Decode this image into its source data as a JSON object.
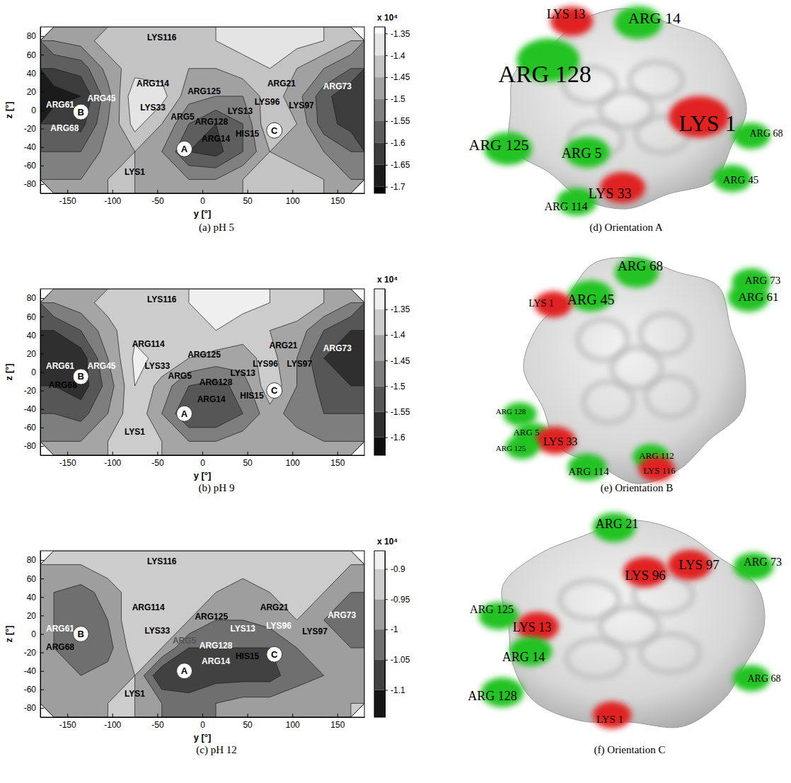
{
  "chart_data": [
    {
      "type": "contour",
      "title": "(a) pH 5",
      "x_label": "y [°]",
      "y_label": "z [°]",
      "xlim": [
        -180,
        180
      ],
      "xticks": [
        -150,
        -100,
        -50,
        0,
        50,
        100,
        150
      ],
      "ylim": [
        -90,
        90
      ],
      "yticks": [
        -80,
        -60,
        -40,
        -20,
        0,
        20,
        40,
        60,
        80
      ],
      "x": [
        -165,
        -135,
        -105,
        -75,
        -45,
        -15,
        15,
        45,
        75,
        105,
        135,
        165
      ],
      "y": [
        75,
        45,
        15,
        -15,
        -45,
        -75
      ],
      "cells": [
        [
          -1.5,
          -1.48,
          -1.42,
          -1.42,
          -1.42,
          -1.42,
          -1.4,
          -1.38,
          -1.38,
          -1.38,
          -1.4,
          -1.45
        ],
        [
          -1.6,
          -1.58,
          -1.48,
          -1.42,
          -1.42,
          -1.45,
          -1.45,
          -1.42,
          -1.4,
          -1.45,
          -1.5,
          -1.55
        ],
        [
          -1.68,
          -1.65,
          -1.52,
          -1.36,
          -1.38,
          -1.48,
          -1.5,
          -1.5,
          -1.42,
          -1.48,
          -1.58,
          -1.65
        ],
        [
          -1.6,
          -1.62,
          -1.5,
          -1.38,
          -1.45,
          -1.55,
          -1.6,
          -1.55,
          -1.4,
          -1.45,
          -1.58,
          -1.62
        ],
        [
          -1.55,
          -1.55,
          -1.48,
          -1.45,
          -1.5,
          -1.6,
          -1.62,
          -1.55,
          -1.45,
          -1.48,
          -1.5,
          -1.55
        ],
        [
          -1.5,
          -1.5,
          -1.45,
          -1.45,
          -1.48,
          -1.5,
          -1.5,
          -1.45,
          -1.45,
          -1.42,
          -1.45,
          -1.5
        ]
      ],
      "colorbar": {
        "range": [
          -1.715,
          -1.335
        ],
        "ticks": [
          -1.7,
          -1.65,
          -1.6,
          -1.55,
          -1.5,
          -1.45,
          -1.4,
          -1.35
        ],
        "label": "x 10⁴"
      },
      "annotations": [
        {
          "text": "LYS116",
          "x": -45,
          "y": 78,
          "color": "#000000"
        },
        {
          "text": "ARG114",
          "x": -55,
          "y": 28,
          "color": "#000000"
        },
        {
          "text": "ARG61",
          "x": -158,
          "y": 5,
          "color": "#ffffff"
        },
        {
          "text": "ARG45",
          "x": -112,
          "y": 12,
          "color": "#ffffff"
        },
        {
          "text": "ARG68",
          "x": -153,
          "y": -20,
          "color": "#ffffff"
        },
        {
          "text": "LYS33",
          "x": -55,
          "y": 2,
          "color": "#000000"
        },
        {
          "text": "ARG125",
          "x": 2,
          "y": 20,
          "color": "#000000"
        },
        {
          "text": "ARG5",
          "x": -22,
          "y": -8,
          "color": "#000000"
        },
        {
          "text": "ARG128",
          "x": 10,
          "y": -13,
          "color": "#000000"
        },
        {
          "text": "LYS13",
          "x": 42,
          "y": -2,
          "color": "#000000"
        },
        {
          "text": "ARG14",
          "x": 15,
          "y": -32,
          "color": "#000000"
        },
        {
          "text": "HIS15",
          "x": 50,
          "y": -26,
          "color": "#000000"
        },
        {
          "text": "ARG21",
          "x": 88,
          "y": 28,
          "color": "#000000"
        },
        {
          "text": "LYS96",
          "x": 72,
          "y": 8,
          "color": "#000000"
        },
        {
          "text": "LYS97",
          "x": 110,
          "y": 4,
          "color": "#000000"
        },
        {
          "text": "ARG73",
          "x": 150,
          "y": 25,
          "color": "#ffffff"
        },
        {
          "text": "LYS1",
          "x": -75,
          "y": -68,
          "color": "#000000"
        }
      ],
      "markers": [
        {
          "text": "A",
          "x": -20,
          "y": -42
        },
        {
          "text": "B",
          "x": -135,
          "y": -2
        },
        {
          "text": "C",
          "x": 80,
          "y": -22
        }
      ]
    },
    {
      "type": "contour",
      "title": "(b) pH 9",
      "x_label": "y [°]",
      "y_label": "z [°]",
      "xlim": [
        -180,
        180
      ],
      "xticks": [
        -150,
        -100,
        -50,
        0,
        50,
        100,
        150
      ],
      "ylim": [
        -90,
        90
      ],
      "yticks": [
        -80,
        -60,
        -40,
        -20,
        0,
        20,
        40,
        60,
        80
      ],
      "x": [
        -165,
        -135,
        -105,
        -75,
        -45,
        -15,
        15,
        45,
        75,
        105,
        135,
        165
      ],
      "y": [
        75,
        45,
        15,
        -15,
        -45,
        -75
      ],
      "cells": [
        [
          -1.45,
          -1.42,
          -1.38,
          -1.36,
          -1.4,
          -1.35,
          -1.35,
          -1.33,
          -1.35,
          -1.36,
          -1.4,
          -1.45
        ],
        [
          -1.55,
          -1.5,
          -1.42,
          -1.36,
          -1.4,
          -1.38,
          -1.35,
          -1.38,
          -1.4,
          -1.42,
          -1.5,
          -1.55
        ],
        [
          -1.6,
          -1.58,
          -1.45,
          -1.34,
          -1.36,
          -1.4,
          -1.42,
          -1.42,
          -1.38,
          -1.45,
          -1.55,
          -1.58
        ],
        [
          -1.55,
          -1.58,
          -1.48,
          -1.35,
          -1.42,
          -1.5,
          -1.52,
          -1.48,
          -1.36,
          -1.45,
          -1.52,
          -1.55
        ],
        [
          -1.5,
          -1.52,
          -1.45,
          -1.36,
          -1.45,
          -1.55,
          -1.55,
          -1.5,
          -1.42,
          -1.48,
          -1.5,
          -1.5
        ],
        [
          -1.45,
          -1.45,
          -1.4,
          -1.36,
          -1.4,
          -1.45,
          -1.45,
          -1.42,
          -1.4,
          -1.42,
          -1.45,
          -1.45
        ]
      ],
      "colorbar": {
        "range": [
          -1.635,
          -1.31
        ],
        "ticks": [
          -1.6,
          -1.55,
          -1.5,
          -1.45,
          -1.4,
          -1.35
        ],
        "label": "x 10⁴"
      },
      "annotations": [
        {
          "text": "LYS116",
          "x": -45,
          "y": 78,
          "color": "#000000"
        },
        {
          "text": "ARG114",
          "x": -60,
          "y": 30,
          "color": "#000000"
        },
        {
          "text": "ARG61",
          "x": -158,
          "y": 6,
          "color": "#ffffff"
        },
        {
          "text": "ARG45",
          "x": -112,
          "y": 6,
          "color": "#ffffff"
        },
        {
          "text": "ARG68",
          "x": -155,
          "y": -15,
          "color": "#000000"
        },
        {
          "text": "LYS33",
          "x": -50,
          "y": 6,
          "color": "#000000"
        },
        {
          "text": "ARG125",
          "x": 2,
          "y": 18,
          "color": "#000000"
        },
        {
          "text": "ARG5",
          "x": -25,
          "y": -5,
          "color": "#000000"
        },
        {
          "text": "ARG128",
          "x": 15,
          "y": -12,
          "color": "#000000"
        },
        {
          "text": "LYS13",
          "x": 45,
          "y": -2,
          "color": "#000000"
        },
        {
          "text": "ARG14",
          "x": 10,
          "y": -30,
          "color": "#000000"
        },
        {
          "text": "HIS15",
          "x": 55,
          "y": -26,
          "color": "#000000"
        },
        {
          "text": "ARG21",
          "x": 90,
          "y": 28,
          "color": "#000000"
        },
        {
          "text": "LYS96",
          "x": 70,
          "y": 8,
          "color": "#000000"
        },
        {
          "text": "LYS97",
          "x": 108,
          "y": 8,
          "color": "#000000"
        },
        {
          "text": "ARG73",
          "x": 150,
          "y": 25,
          "color": "#ffffff"
        },
        {
          "text": "LYS1",
          "x": -75,
          "y": -65,
          "color": "#000000"
        }
      ],
      "markers": [
        {
          "text": "A",
          "x": -20,
          "y": -45
        },
        {
          "text": "B",
          "x": -135,
          "y": -5
        },
        {
          "text": "C",
          "x": 80,
          "y": -20
        }
      ]
    },
    {
      "type": "contour",
      "title": "(c) pH 12",
      "x_label": "y [°]",
      "y_label": "z [°]",
      "xlim": [
        -180,
        180
      ],
      "xticks": [
        -150,
        -100,
        -50,
        0,
        50,
        100,
        150
      ],
      "ylim": [
        -90,
        90
      ],
      "yticks": [
        -80,
        -60,
        -40,
        -20,
        0,
        20,
        40,
        60,
        80
      ],
      "x": [
        -165,
        -135,
        -105,
        -75,
        -45,
        -15,
        15,
        45,
        75,
        105,
        135,
        165
      ],
      "y": [
        75,
        45,
        15,
        -15,
        -45,
        -75
      ],
      "cells": [
        [
          -0.95,
          -0.95,
          -0.92,
          -0.9,
          -0.95,
          -0.95,
          -0.95,
          -0.93,
          -0.92,
          -0.9,
          -0.92,
          -0.95
        ],
        [
          -1.0,
          -1.02,
          -0.98,
          -0.92,
          -0.92,
          -0.9,
          -0.95,
          -0.97,
          -0.95,
          -0.92,
          -0.95,
          -1.0
        ],
        [
          -1.0,
          -1.02,
          -1.0,
          -0.9,
          -0.9,
          -0.95,
          -1.0,
          -1.0,
          -0.98,
          -0.95,
          -1.0,
          -1.02
        ],
        [
          -1.0,
          -1.02,
          -1.02,
          -0.92,
          -0.95,
          -1.05,
          -1.05,
          -1.05,
          -1.05,
          -1.0,
          -1.0,
          -1.0
        ],
        [
          -1.0,
          -1.0,
          -0.98,
          -0.95,
          -1.1,
          -1.1,
          -1.07,
          -1.07,
          -1.07,
          -1.02,
          -1.0,
          -0.98
        ],
        [
          -0.97,
          -0.97,
          -0.95,
          -0.95,
          -1.0,
          -1.02,
          -1.0,
          -0.98,
          -0.98,
          -0.97,
          -0.97,
          -0.95
        ]
      ],
      "colorbar": {
        "range": [
          -1.145,
          -0.87
        ],
        "ticks": [
          -1.1,
          -1.05,
          -1,
          -0.95,
          -0.9
        ],
        "label": "x 10⁴"
      },
      "annotations": [
        {
          "text": "LYS116",
          "x": -45,
          "y": 78,
          "color": "#000000"
        },
        {
          "text": "ARG114",
          "x": -60,
          "y": 28,
          "color": "#000000"
        },
        {
          "text": "ARG61",
          "x": -158,
          "y": 5,
          "color": "#ffffff"
        },
        {
          "text": "ARG68",
          "x": -158,
          "y": -15,
          "color": "#000000"
        },
        {
          "text": "LYS33",
          "x": -50,
          "y": 3,
          "color": "#000000"
        },
        {
          "text": "ARG125",
          "x": 10,
          "y": 18,
          "color": "#000000"
        },
        {
          "text": "ARG5",
          "x": -20,
          "y": -8,
          "color": "#555555"
        },
        {
          "text": "ARG128",
          "x": 15,
          "y": -13,
          "color": "#ffffff"
        },
        {
          "text": "LYS13",
          "x": 45,
          "y": 5,
          "color": "#ffffff"
        },
        {
          "text": "ARG14",
          "x": 15,
          "y": -30,
          "color": "#ffffff"
        },
        {
          "text": "HIS15",
          "x": 50,
          "y": -25,
          "color": "#000000"
        },
        {
          "text": "ARG21",
          "x": 80,
          "y": 28,
          "color": "#000000"
        },
        {
          "text": "LYS96",
          "x": 85,
          "y": 8,
          "color": "#ffffff"
        },
        {
          "text": "LYS97",
          "x": 125,
          "y": 2,
          "color": "#000000"
        },
        {
          "text": "ARG73",
          "x": 155,
          "y": 20,
          "color": "#ffffff"
        },
        {
          "text": "LYS1",
          "x": -75,
          "y": -65,
          "color": "#000000"
        }
      ],
      "markers": [
        {
          "text": "A",
          "x": -20,
          "y": -40
        },
        {
          "text": "B",
          "x": -135,
          "y": 0
        },
        {
          "text": "C",
          "x": 80,
          "y": -22
        }
      ]
    }
  ],
  "structures": [
    {
      "title": "(d) Orientation A",
      "residues": [
        {
          "text": "LYS 13",
          "color": "#e02222"
        },
        {
          "text": "ARG 14",
          "color": "#22c322"
        },
        {
          "text": "ARG 128",
          "color": "#22c322"
        },
        {
          "text": "LYS 1",
          "color": "#e02222"
        },
        {
          "text": "ARG 68",
          "color": "#22c322"
        },
        {
          "text": "ARG 125",
          "color": "#22c322"
        },
        {
          "text": "ARG 5",
          "color": "#22c322"
        },
        {
          "text": "LYS 33",
          "color": "#e02222"
        },
        {
          "text": "ARG 45",
          "color": "#22c322"
        },
        {
          "text": "ARG 114",
          "color": "#22c322"
        }
      ]
    },
    {
      "title": "(e) Orientation B",
      "residues": [
        {
          "text": "ARG 68",
          "color": "#22c322"
        },
        {
          "text": "ARG 73",
          "color": "#22c322"
        },
        {
          "text": "ARG 61",
          "color": "#22c322"
        },
        {
          "text": "ARG 45",
          "color": "#22c322"
        },
        {
          "text": "LYS 1",
          "color": "#e02222"
        },
        {
          "text": "ARG 128",
          "color": "#22c322"
        },
        {
          "text": "ARG 5",
          "color": "#22c322"
        },
        {
          "text": "LYS 33",
          "color": "#e02222"
        },
        {
          "text": "ARG 125",
          "color": "#22c322"
        },
        {
          "text": "ARG 112",
          "color": "#22c322"
        },
        {
          "text": "ARG 114",
          "color": "#22c322"
        },
        {
          "text": "LYS 116",
          "color": "#e02222"
        }
      ]
    },
    {
      "title": "(f) Orientation C",
      "residues": [
        {
          "text": "ARG 21",
          "color": "#22c322"
        },
        {
          "text": "LYS 97",
          "color": "#e02222"
        },
        {
          "text": "LYS 96",
          "color": "#e02222"
        },
        {
          "text": "ARG 73",
          "color": "#22c322"
        },
        {
          "text": "ARG 125",
          "color": "#22c322"
        },
        {
          "text": "LYS 13",
          "color": "#e02222"
        },
        {
          "text": "ARG 14",
          "color": "#22c322"
        },
        {
          "text": "ARG 68",
          "color": "#22c322"
        },
        {
          "text": "ARG 128",
          "color": "#22c322"
        },
        {
          "text": "LYS 1",
          "color": "#e02222"
        }
      ]
    }
  ]
}
